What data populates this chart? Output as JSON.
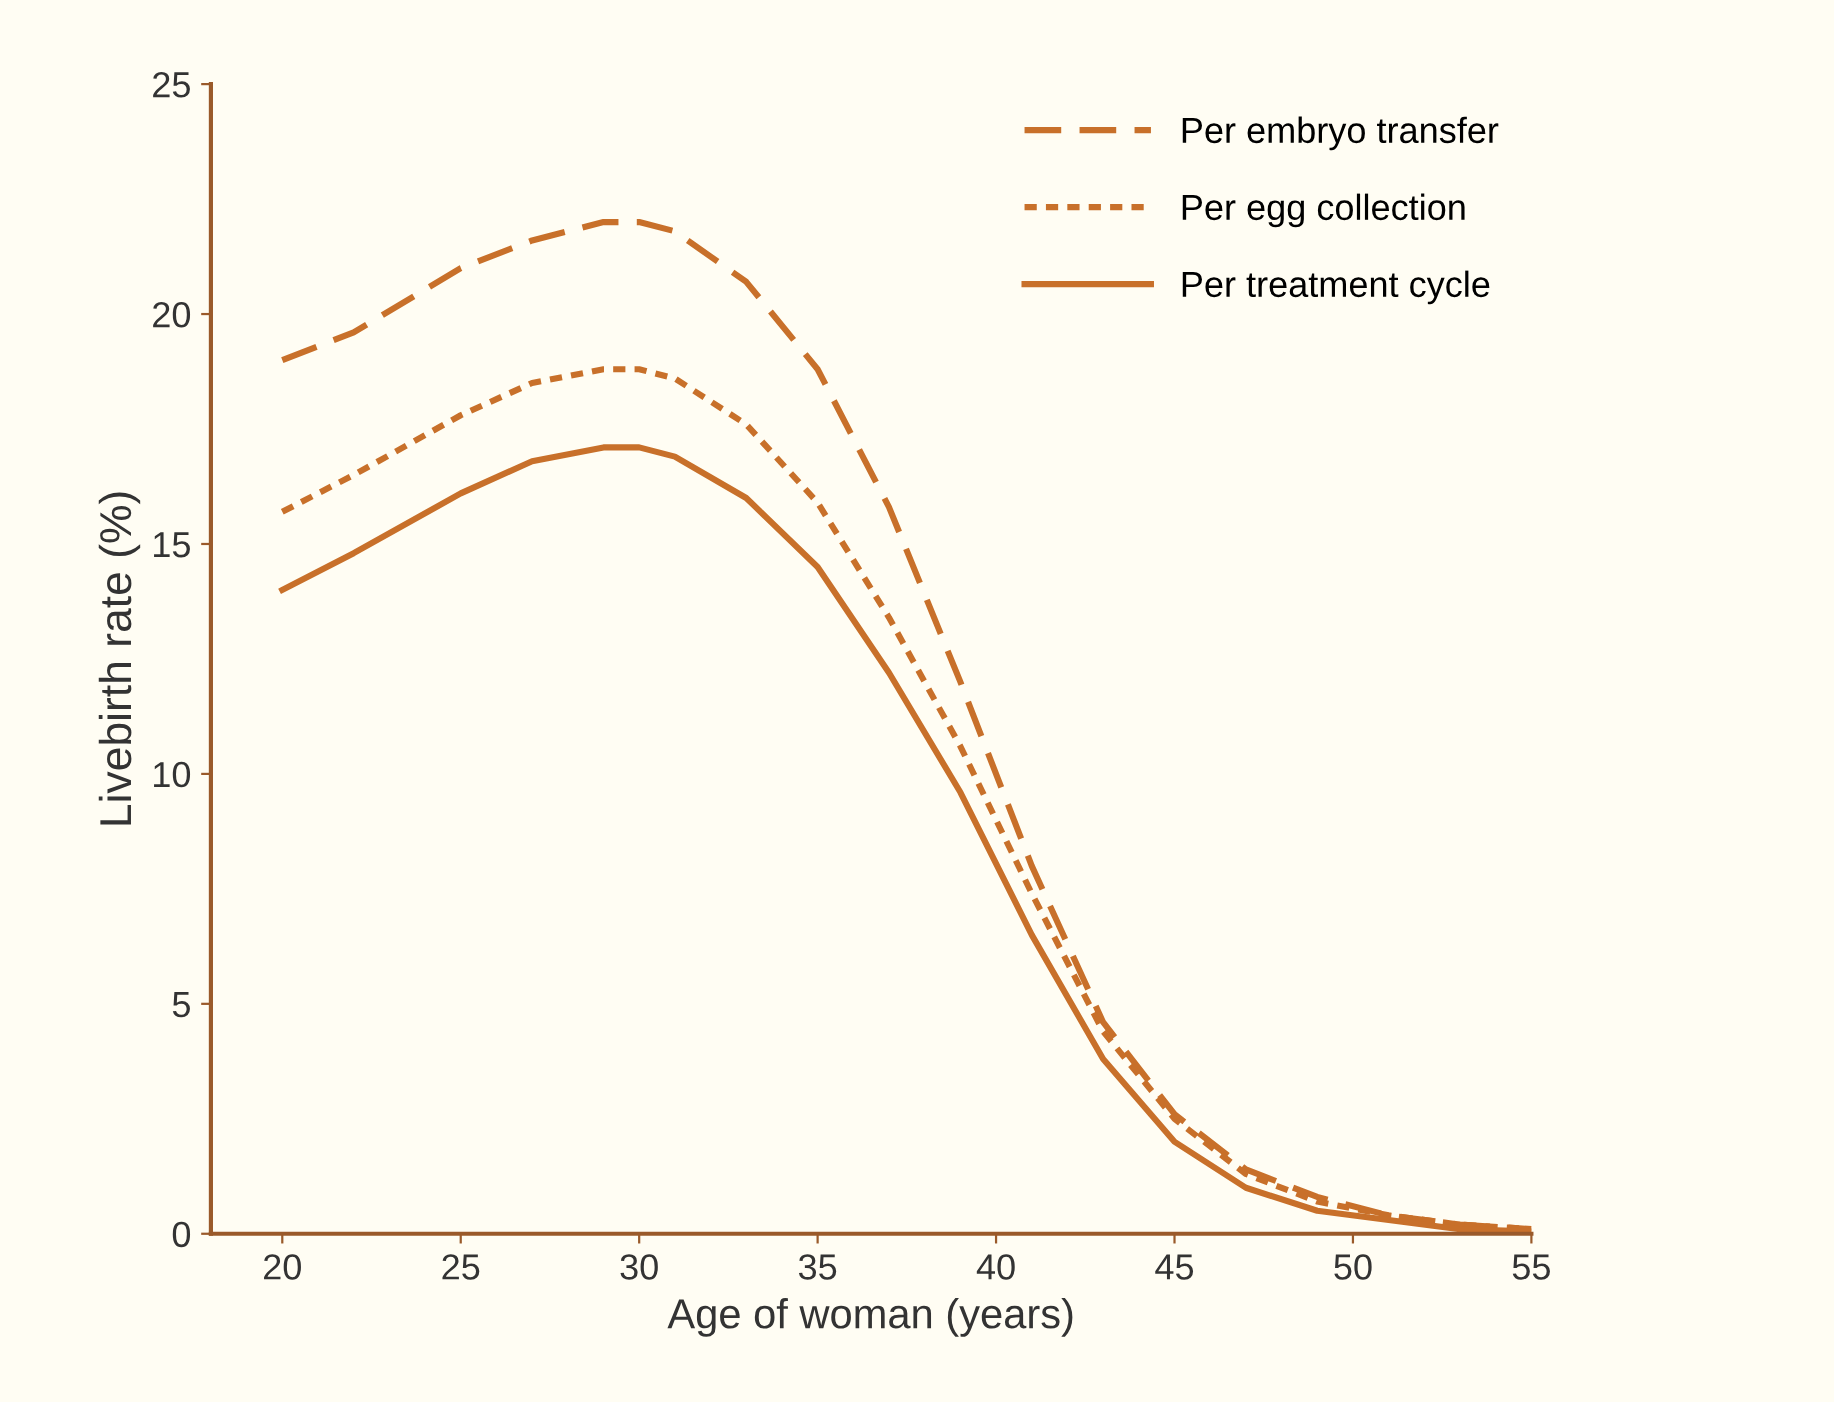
{
  "chart_data": {
    "type": "line",
    "xlabel": "Age of woman (years)",
    "ylabel": "Livebirth rate (%)",
    "x": [
      20,
      22,
      25,
      27,
      29,
      30,
      31,
      33,
      35,
      37,
      39,
      41,
      43,
      45,
      47,
      49,
      51,
      53,
      55
    ],
    "series": [
      {
        "name": "Per embryo transfer",
        "color": "#c8702a",
        "line_style": "dashed",
        "values": [
          19.0,
          19.6,
          21.0,
          21.6,
          22.0,
          22.0,
          21.8,
          20.7,
          18.8,
          15.8,
          12.0,
          8.0,
          4.6,
          2.6,
          1.4,
          0.8,
          0.4,
          0.2,
          0.1
        ]
      },
      {
        "name": "Per egg collection",
        "color": "#c8702a",
        "line_style": "dotted",
        "values": [
          15.7,
          16.5,
          17.8,
          18.5,
          18.8,
          18.8,
          18.6,
          17.6,
          15.9,
          13.4,
          10.6,
          7.4,
          4.4,
          2.5,
          1.3,
          0.7,
          0.4,
          0.2,
          0.1
        ]
      },
      {
        "name": "Per treatment cycle",
        "color": "#c8702a",
        "line_style": "solid",
        "values": [
          14.0,
          14.8,
          16.1,
          16.8,
          17.1,
          17.1,
          16.9,
          16.0,
          14.5,
          12.2,
          9.6,
          6.5,
          3.8,
          2.0,
          1.0,
          0.5,
          0.3,
          0.1,
          0.05
        ]
      }
    ],
    "xlim": [
      18,
      55
    ],
    "xticks": [
      20,
      25,
      30,
      35,
      40,
      45,
      50,
      55
    ],
    "ylim": [
      0,
      25
    ],
    "yticks": [
      0,
      5,
      10,
      15,
      20,
      25
    ],
    "grid": false,
    "legend": "top right",
    "marker": "none"
  }
}
